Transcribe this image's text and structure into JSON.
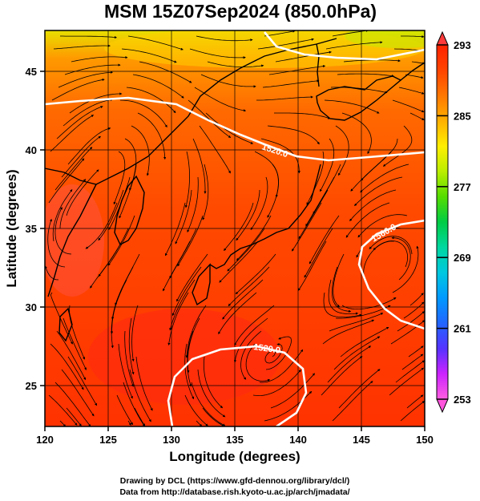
{
  "title": "MSM 15Z07Sep2024 (850.0hPa)",
  "axes": {
    "xlabel": "Longitude (degrees)",
    "ylabel": "Latitude  (degrees)",
    "xticks": [
      "120",
      "125",
      "130",
      "135",
      "140",
      "145",
      "150"
    ],
    "yticks": [
      "25",
      "30",
      "35",
      "40",
      "45"
    ],
    "xlim": [
      120,
      150
    ],
    "ylim": [
      22.4,
      47.6
    ]
  },
  "colorbar": {
    "ticks": [
      "293",
      "285",
      "277",
      "269",
      "261",
      "253"
    ],
    "range": [
      253,
      293
    ],
    "colors": [
      "#ff5fe0",
      "#cc22ff",
      "#5533ff",
      "#2266ff",
      "#0099ff",
      "#00c8e0",
      "#00d7a0",
      "#00cc44",
      "#55dd00",
      "#bbee00",
      "#ffee00",
      "#ffb000",
      "#ff7700",
      "#ff4400",
      "#ff2200"
    ]
  },
  "contours": [
    {
      "label": "1520.0"
    },
    {
      "label": "1560.0"
    },
    {
      "label": "1520.0"
    }
  ],
  "credits": {
    "line1": "Drawing by DCL (https://www.gfd-dennou.org/library/dcl/)",
    "line2": "Data from http://database.rish.kyoto-u.ac.jp/arch/jmadata/"
  }
}
